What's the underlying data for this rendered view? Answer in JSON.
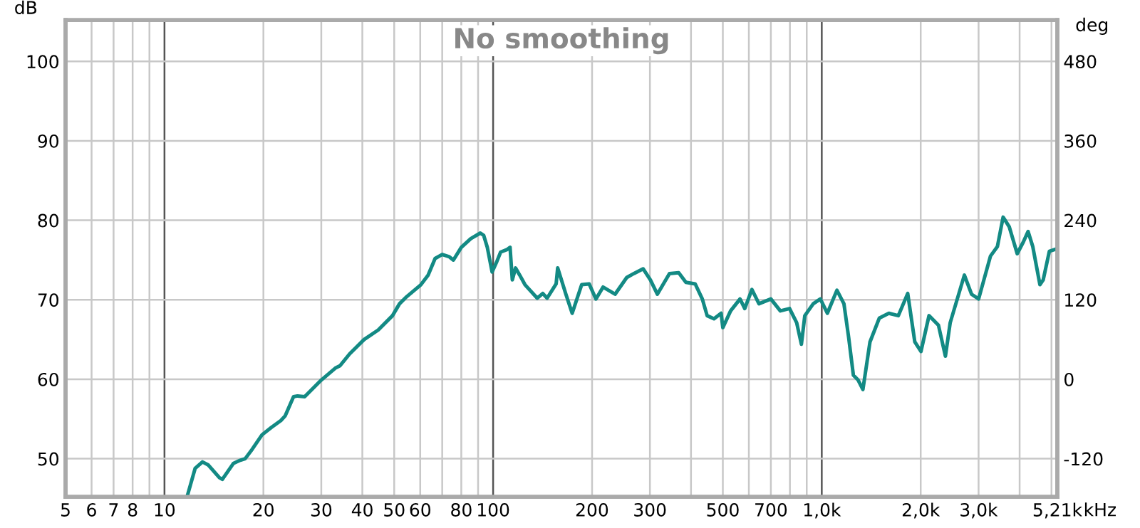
{
  "chart_data": {
    "type": "line",
    "title": "No smoothing",
    "ylabel": "dB",
    "y2label": "deg",
    "x": [
      11.73,
      12.4,
      13.05,
      13.6,
      14.7,
      15.0,
      16.2,
      17.0,
      17.6,
      18.5,
      19.8,
      21.1,
      22.6,
      23.3,
      24.7,
      25.4,
      26.7,
      30.0,
      33.1,
      34.2,
      36.6,
      40.5,
      44.7,
      49.4,
      51.9,
      54.6,
      60.3,
      63.4,
      66.6,
      70.0,
      73.6,
      75.7,
      80.0,
      85.5,
      91.4,
      93.6,
      96.0,
      99.3,
      102.6,
      105.4,
      110.0,
      112.6,
      114.4,
      117.0,
      120.5,
      125.0,
      136.2,
      141.6,
      146.0,
      155.5,
      157.2,
      166.5,
      174,
      186,
      196,
      205.5,
      216,
      235,
      255,
      268,
      286,
      301,
      316,
      344,
      367,
      386,
      412,
      433,
      448,
      470,
      494,
      500,
      528,
      564,
      583,
      613,
      644,
      700,
      748,
      798,
      839,
      867,
      888,
      942,
      990,
      1040,
      1112,
      1168,
      1207,
      1248,
      1290,
      1334,
      1402,
      1497,
      1600,
      1710,
      1826,
      1919,
      2004,
      2120,
      2265,
      2378,
      2459,
      2716,
      2856,
      3001,
      3261,
      3423,
      3563,
      3718,
      3933,
      4108,
      4244,
      4386,
      4611,
      4718,
      4926,
      5179
    ],
    "series": [
      {
        "color": "#138a84",
        "values": [
          45.3,
          48.8,
          49.6,
          49.2,
          47.6,
          47.4,
          49.4,
          49.8,
          50.0,
          51.2,
          53.0,
          53.9,
          54.8,
          55.4,
          57.8,
          57.9,
          57.8,
          59.9,
          61.4,
          61.7,
          63.2,
          65.0,
          66.2,
          68.0,
          69.5,
          70.4,
          71.9,
          73.1,
          75.2,
          75.7,
          75.4,
          75.0,
          76.6,
          77.7,
          78.4,
          78.1,
          76.6,
          73.5,
          74.8,
          76.0,
          76.3,
          76.6,
          72.5,
          74.0,
          73.1,
          71.9,
          70.2,
          70.8,
          70.2,
          72.0,
          74.0,
          70.7,
          68.3,
          71.9,
          72.0,
          70.1,
          71.6,
          70.7,
          72.8,
          73.3,
          73.9,
          72.5,
          70.7,
          73.3,
          73.4,
          72.2,
          72.0,
          70.1,
          68.0,
          67.6,
          68.3,
          66.5,
          68.6,
          70.1,
          68.9,
          71.3,
          69.5,
          70.1,
          68.6,
          68.9,
          67.1,
          64.4,
          68.0,
          69.5,
          70.1,
          68.3,
          71.2,
          69.5,
          65.3,
          60.5,
          59.9,
          58.7,
          64.7,
          67.7,
          68.3,
          68.0,
          70.8,
          64.7,
          63.5,
          68.0,
          66.8,
          62.9,
          67.1,
          73.1,
          70.7,
          70.1,
          75.5,
          76.7,
          80.4,
          79.2,
          75.8,
          77.3,
          78.6,
          76.7,
          71.9,
          72.5,
          76.1,
          76.4
        ]
      }
    ],
    "xlabel": "kHz",
    "log": "x",
    "xlim": [
      5,
      5210
    ],
    "ylim": [
      45.2,
      105.2
    ],
    "y2lim": [
      -177.6,
      542.4
    ],
    "xticks": [
      5,
      6,
      7,
      8,
      {
        "value": 9,
        "label": null
      },
      10,
      20,
      30,
      40,
      50,
      60,
      {
        "value": 70,
        "label": null
      },
      80,
      {
        "value": 90,
        "label": null
      },
      100,
      200,
      300,
      {
        "value": 400,
        "label": null
      },
      500,
      {
        "value": 600,
        "label": null
      },
      700,
      {
        "value": 800,
        "label": null
      },
      {
        "value": 900,
        "label": null
      },
      {
        "value": 1000,
        "label": "1,0k"
      },
      {
        "value": 2000,
        "label": "2,0k"
      },
      {
        "value": 3000,
        "label": "3,0k"
      },
      {
        "value": 4000,
        "label": null
      },
      {
        "value": 5000,
        "label": null
      },
      {
        "value": 5210,
        "label": "5,21k"
      }
    ],
    "yticks": [
      50,
      60,
      70,
      80,
      90,
      100
    ],
    "y2ticks": [
      -120,
      0,
      120,
      240,
      360,
      480
    ],
    "grid": true,
    "legend": false,
    "line_style": "solid",
    "marker": "none"
  }
}
